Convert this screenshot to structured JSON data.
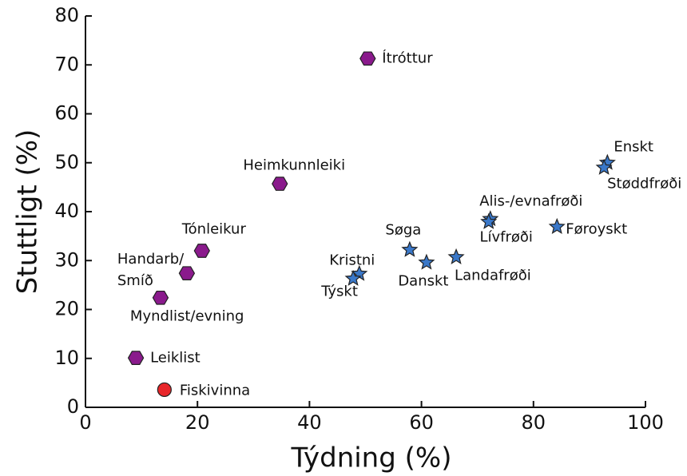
{
  "chart_data": {
    "type": "scatter",
    "xlabel": "Týdning (%)",
    "ylabel": "Stuttligt (%)",
    "xlim": [
      0,
      100
    ],
    "xticks": [
      0,
      20,
      40,
      60,
      80,
      100
    ],
    "ylim": [
      0,
      80
    ],
    "yticks": [
      0,
      10,
      20,
      30,
      40,
      50,
      60,
      70,
      80
    ],
    "series": [
      {
        "marker": "hexagon",
        "color": "#8a1a8c",
        "labels": [
          "Ítróttur",
          "Heimkunnleiki",
          "Tónleikur",
          "Handarb/\nSmíð",
          "Myndlist/evning",
          "Leiklist"
        ],
        "x": [
          50.4,
          34.7,
          20.8,
          18.1,
          13.4,
          9.0
        ],
        "y": [
          71.3,
          45.7,
          32.0,
          27.4,
          22.4,
          10.1
        ]
      },
      {
        "marker": "circle",
        "color": "#e8262a",
        "labels": [
          "Fiskivinna"
        ],
        "x": [
          14.1
        ],
        "y": [
          3.6
        ]
      },
      {
        "marker": "star",
        "color": "#3a78c9",
        "labels": [
          "Kristni",
          "Týskt",
          "Søga",
          "Danskt",
          "Landafrøði",
          "Alis-/evnafrøði",
          "Lívfrøði",
          "Føroyskt",
          "Enskt",
          "Støddfrøði"
        ],
        "x": [
          48.9,
          47.8,
          57.9,
          60.9,
          66.2,
          72.3,
          72.0,
          84.2,
          93.2,
          92.6
        ],
        "y": [
          27.3,
          26.3,
          32.2,
          29.6,
          30.7,
          38.5,
          37.9,
          36.9,
          50.0,
          49.0
        ]
      }
    ]
  }
}
